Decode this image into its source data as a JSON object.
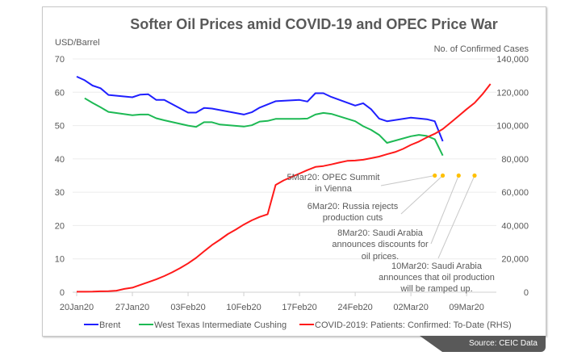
{
  "chart_data": {
    "type": "line",
    "title": "Softer Oil Prices amid COVID-19 and OPEC Price War",
    "ylabel": "USD/Barrel",
    "y2label": "No. of Confirmed Cases",
    "ylim": [
      0,
      70
    ],
    "y2lim": [
      0,
      140000
    ],
    "yticks": [
      "0",
      "10",
      "20",
      "30",
      "40",
      "50",
      "60",
      "70"
    ],
    "y2ticks": [
      "0",
      "20,000",
      "40,000",
      "60,000",
      "80,000",
      "100,000",
      "120,000",
      "140,000"
    ],
    "xticks": [
      "20Jan20",
      "27Jan20",
      "03Feb20",
      "10Feb20",
      "17Feb20",
      "24Feb20",
      "02Mar20",
      "09Mar20"
    ],
    "x_unit": "days since 20Jan20",
    "grid": true,
    "legend_position": "bottom",
    "series": [
      {
        "name": "Brent",
        "color": "#1f1fff",
        "axis": "left",
        "x": [
          0,
          1,
          2,
          3,
          4,
          7,
          8,
          9,
          10,
          11,
          14,
          15,
          16,
          17,
          21,
          22,
          23,
          25,
          28,
          29,
          30,
          31,
          32,
          35,
          36,
          37,
          38,
          39,
          42,
          44,
          45,
          46
        ],
        "values": [
          64.7,
          63.6,
          62,
          61.2,
          59.2,
          58.5,
          59.3,
          59.4,
          57.7,
          57.7,
          53.9,
          53.9,
          55.3,
          55.1,
          53.3,
          54,
          55.4,
          57.3,
          57.7,
          57.2,
          59.7,
          59.7,
          58.6,
          56,
          56.7,
          54.9,
          52.1,
          51.3,
          52.4,
          51.9,
          51.3,
          45.3
        ]
      },
      {
        "name": "West Texas Intermediate Cushing",
        "color": "#1db954",
        "axis": "left",
        "x": [
          1,
          2,
          3,
          4,
          7,
          8,
          9,
          10,
          11,
          14,
          15,
          16,
          17,
          18,
          21,
          22,
          23,
          24,
          25,
          28,
          29,
          30,
          31,
          32,
          35,
          36,
          37,
          38,
          39,
          42,
          43,
          44,
          45,
          46
        ],
        "values": [
          58.2,
          56.8,
          55.5,
          54.1,
          53.1,
          53.3,
          53.3,
          52.2,
          51.6,
          50,
          49.6,
          51,
          51,
          50.3,
          49.7,
          50.1,
          51.2,
          51.4,
          52,
          52,
          52.1,
          53.3,
          53.8,
          53.5,
          51.3,
          49.8,
          48.7,
          47.2,
          44.8,
          46.8,
          47.2,
          46.9,
          45.9,
          41
        ]
      },
      {
        "name": "COVID-2019: Patients: Confirmed: To-Date (RHS)",
        "color": "#ff1a1a",
        "axis": "right",
        "x": [
          0,
          1,
          2,
          3,
          4,
          5,
          6,
          7,
          8,
          9,
          10,
          11,
          12,
          13,
          14,
          15,
          16,
          17,
          18,
          19,
          20,
          21,
          22,
          23,
          24,
          25,
          26,
          27,
          28,
          29,
          30,
          31,
          32,
          33,
          34,
          35,
          36,
          37,
          38,
          39,
          40,
          41,
          42,
          43,
          44,
          45,
          46,
          47,
          48,
          49,
          50,
          51,
          52
        ],
        "values": [
          278,
          300,
          326,
          547,
          639,
          916,
          2000,
          2700,
          4400,
          6000,
          7700,
          9700,
          11900,
          14500,
          17300,
          20600,
          24500,
          28300,
          31500,
          34900,
          37600,
          40600,
          43100,
          45200,
          46800,
          64400,
          67100,
          69200,
          71200,
          73300,
          75200,
          75700,
          76700,
          77800,
          78800,
          79000,
          79500,
          80400,
          81400,
          82800,
          84100,
          86000,
          88400,
          90400,
          92900,
          95100,
          97900,
          101800,
          105800,
          109800,
          113600,
          118900,
          125000
        ]
      }
    ],
    "annotations": [
      {
        "day": 45,
        "value": 35,
        "lines": [
          "5Mar20: OPEC Summit",
          "in Vienna"
        ]
      },
      {
        "day": 46,
        "value": 35,
        "lines": [
          "6Mar20: Russia rejects",
          "production cuts"
        ]
      },
      {
        "day": 48,
        "value": 35,
        "lines": [
          "8Mar20: Saudi Arabia",
          "announces discounts for",
          "oil prices."
        ]
      },
      {
        "day": 50,
        "value": 35,
        "lines": [
          "10Mar20: Saudi Arabia",
          "announces that oil production",
          "will be ramped up."
        ]
      }
    ],
    "annotation_color": "#ffc000"
  },
  "source": "Source: CEIC Data"
}
